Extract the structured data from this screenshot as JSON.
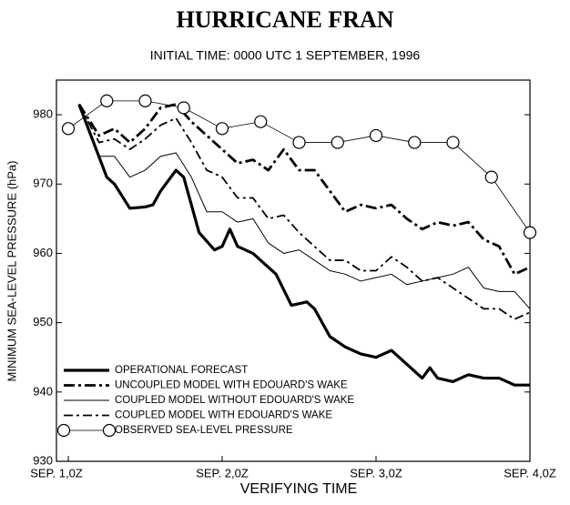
{
  "chart_data": {
    "type": "line",
    "title": "HURRICANE FRAN",
    "subtitle": "INITIAL TIME: 0000 UTC 1 SEPTEMBER, 1996",
    "x_label": "VERIFYING TIME",
    "y_label": "MINIMUM SEA-LEVEL PRESSURE (hPa)",
    "xlim": [
      0,
      3
    ],
    "xticks": [
      {
        "value": 0,
        "label": "SEP. 1,0Z"
      },
      {
        "value": 1,
        "label": "SEP. 2,0Z"
      },
      {
        "value": 2,
        "label": "SEP. 3,0Z"
      },
      {
        "value": 3,
        "label": "SEP. 4,0Z"
      }
    ],
    "ylim": [
      930,
      985
    ],
    "yticks": [
      930,
      940,
      950,
      960,
      970,
      980
    ],
    "legend": "lower-left",
    "series": [
      {
        "name": "OPERATIONAL FORECAST",
        "color": "#000000",
        "width": 3.2,
        "dash": "none",
        "marker": "none",
        "x": [
          0.07,
          0.25,
          0.3,
          0.4,
          0.5,
          0.55,
          0.6,
          0.7,
          0.75,
          0.85,
          0.95,
          1.0,
          1.05,
          1.1,
          1.2,
          1.25,
          1.35,
          1.45,
          1.55,
          1.6,
          1.7,
          1.8,
          1.85,
          1.9,
          2.0,
          2.1,
          2.2,
          2.3,
          2.35,
          2.4,
          2.5,
          2.6,
          2.7,
          2.8,
          2.9,
          3.0
        ],
        "values": [
          981.5,
          971,
          970,
          966.5,
          966.7,
          967,
          969,
          972,
          971,
          963,
          960.5,
          961,
          963.5,
          961,
          960,
          959,
          957,
          952.5,
          953,
          952,
          948,
          946.5,
          946,
          945.5,
          945,
          946,
          944,
          942,
          943.5,
          942,
          941.5,
          942.5,
          942,
          942,
          941,
          941
        ]
      },
      {
        "name": "UNCOUPLED MODEL WITH EDOUARD'S WAKE",
        "color": "#000000",
        "width": 2.8,
        "dash": "12 4 3 4",
        "marker": "none",
        "x": [
          0.07,
          0.2,
          0.3,
          0.4,
          0.5,
          0.6,
          0.7,
          0.8,
          0.9,
          1.0,
          1.1,
          1.2,
          1.3,
          1.4,
          1.5,
          1.6,
          1.7,
          1.8,
          1.9,
          2.0,
          2.1,
          2.2,
          2.3,
          2.4,
          2.5,
          2.6,
          2.7,
          2.8,
          2.9,
          3.0
        ],
        "values": [
          981.5,
          977,
          978,
          976,
          978,
          981,
          981.5,
          979,
          977,
          975,
          973,
          973.5,
          972,
          975,
          972,
          972,
          969,
          966,
          967,
          966.5,
          967,
          965,
          963.5,
          964.5,
          964,
          964.5,
          962,
          961,
          957,
          958
        ]
      },
      {
        "name": "COUPLED MODEL WITHOUT EDOUARD'S WAKE",
        "color": "#000000",
        "width": 1,
        "dash": "none",
        "marker": "none",
        "x": [
          0.07,
          0.2,
          0.3,
          0.4,
          0.5,
          0.6,
          0.7,
          0.8,
          0.9,
          1.0,
          1.1,
          1.2,
          1.3,
          1.4,
          1.5,
          1.6,
          1.7,
          1.8,
          1.9,
          2.0,
          2.1,
          2.2,
          2.3,
          2.4,
          2.5,
          2.6,
          2.7,
          2.8,
          2.9,
          3.0
        ],
        "values": [
          981.5,
          974,
          974,
          971,
          972,
          974,
          974.5,
          971,
          966,
          966,
          964.5,
          965,
          961.5,
          960,
          960.5,
          959,
          957.5,
          957,
          956,
          956.5,
          957,
          955.5,
          956,
          956.5,
          957,
          958,
          955,
          954.5,
          954.5,
          952
        ]
      },
      {
        "name": "COUPLED MODEL WITH EDOUARD'S WAKE",
        "color": "#000000",
        "width": 1.8,
        "dash": "10 4 3 4",
        "marker": "none",
        "x": [
          0.07,
          0.2,
          0.3,
          0.4,
          0.5,
          0.6,
          0.7,
          0.8,
          0.9,
          1.0,
          1.1,
          1.2,
          1.3,
          1.4,
          1.5,
          1.6,
          1.7,
          1.8,
          1.9,
          2.0,
          2.1,
          2.2,
          2.3,
          2.4,
          2.5,
          2.6,
          2.7,
          2.8,
          2.9,
          3.0
        ],
        "values": [
          981.5,
          976,
          976.5,
          975,
          976.5,
          978.5,
          979.5,
          976,
          972,
          971,
          968,
          968,
          965,
          965.5,
          963,
          961,
          959,
          959,
          957.5,
          957.5,
          959.5,
          958,
          956,
          956.5,
          955,
          953.5,
          952,
          952,
          950.5,
          951.5
        ]
      },
      {
        "name": "OBSERVED SEA-LEVEL PRESSURE",
        "color": "#000000",
        "width": 0.8,
        "dash": "none",
        "marker": "circle",
        "x": [
          0,
          0.25,
          0.5,
          0.75,
          1.0,
          1.25,
          1.5,
          1.75,
          2.0,
          2.25,
          2.5,
          2.75,
          3.0
        ],
        "values": [
          978,
          982,
          982,
          981,
          978,
          979,
          976,
          976,
          977,
          976,
          976,
          971,
          963
        ]
      }
    ]
  }
}
